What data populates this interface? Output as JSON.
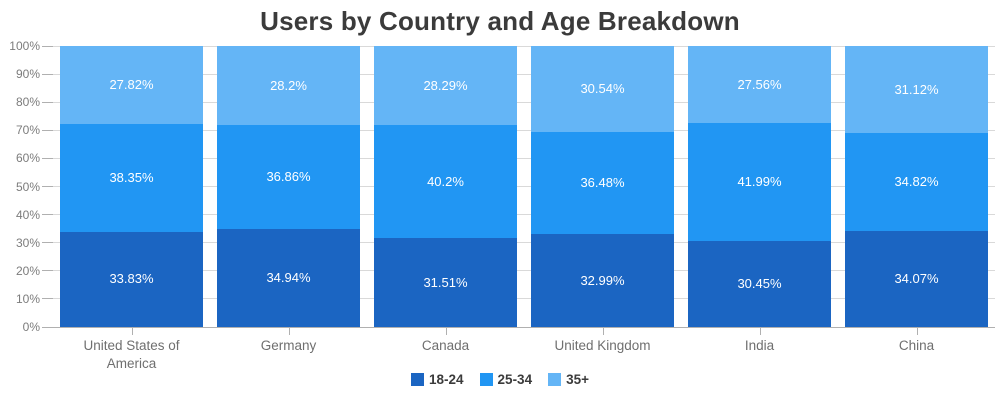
{
  "chart_data": {
    "type": "bar",
    "variant": "stacked-100",
    "title": "Users by Country and Age Breakdown",
    "categories": [
      "United States of America",
      "Germany",
      "Canada",
      "United Kingdom",
      "India",
      "China"
    ],
    "series": [
      {
        "name": "18-24",
        "color": "#1B65C2",
        "values": [
          33.83,
          34.94,
          31.51,
          32.99,
          30.45,
          34.07
        ]
      },
      {
        "name": "25-34",
        "color": "#2196F3",
        "values": [
          38.35,
          36.86,
          40.2,
          36.48,
          41.99,
          34.82
        ]
      },
      {
        "name": "35+",
        "color": "#64B5F6",
        "values": [
          27.82,
          28.2,
          28.29,
          30.54,
          27.56,
          31.12
        ]
      }
    ],
    "data_labels": [
      [
        "33.83%",
        "34.94%",
        "31.51%",
        "32.99%",
        "30.45%",
        "34.07%"
      ],
      [
        "38.35%",
        "36.86%",
        "40.2%",
        "36.48%",
        "41.99%",
        "34.82%"
      ],
      [
        "27.82%",
        "28.2%",
        "28.29%",
        "30.54%",
        "27.56%",
        "31.12%"
      ]
    ],
    "y_axis": {
      "min": 0,
      "max": 100,
      "step": 10,
      "tick_labels": [
        "0%",
        "10%",
        "20%",
        "30%",
        "40%",
        "50%",
        "60%",
        "70%",
        "80%",
        "90%",
        "100%"
      ]
    },
    "grid": "horizontal",
    "legend_position": "bottom",
    "colors": {
      "grid": "#d9d9d9",
      "axis": "#b0b0b0",
      "title_text": "#3b3b3b",
      "axis_text": "#6f6f6f",
      "data_label_text": "#ffffff"
    }
  }
}
